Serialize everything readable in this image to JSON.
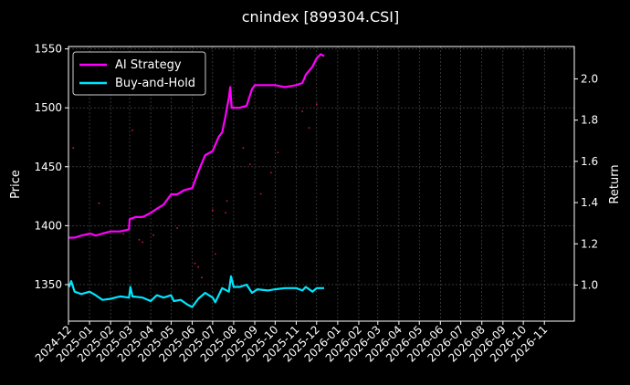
{
  "chart_data": {
    "type": "line",
    "title": "cnindex [899304.CSI]",
    "ylabel_left": "Price",
    "ylabel_right": "Return",
    "x_ticks": [
      "2024-12",
      "2025-01",
      "2025-02",
      "2025-03",
      "2025-04",
      "2025-05",
      "2025-06",
      "2025-07",
      "2025-08",
      "2025-09",
      "2025-10",
      "2025-11",
      "2025-12",
      "2026-01",
      "2026-02",
      "2026-03",
      "2026-04",
      "2026-05",
      "2026-06",
      "2026-07",
      "2026-08",
      "2026-09",
      "2026-10",
      "2026-11"
    ],
    "x_range": [
      "2024-12-01",
      "2026-12-15"
    ],
    "left_ticks": [
      1350,
      1400,
      1450,
      1500,
      1550
    ],
    "left_range": [
      1319,
      1552
    ],
    "right_ticks": [
      "1.0",
      "1.2",
      "1.4",
      "1.6",
      "1.8",
      "2.0"
    ],
    "right_range": [
      0.825,
      2.157
    ],
    "grid": true,
    "legend_position": "top-left",
    "colors": {
      "ai": "#ff00ff",
      "bh": "#00e5ff",
      "bg": "#000000",
      "grid": "#555555"
    },
    "series": [
      {
        "name": "AI Strategy",
        "axis": "right",
        "color": "#ff00ff",
        "points": [
          [
            "2024-12-02",
            1.23
          ],
          [
            "2024-12-10",
            1.23
          ],
          [
            "2024-12-20",
            1.24
          ],
          [
            "2025-01-02",
            1.25
          ],
          [
            "2025-01-10",
            1.24
          ],
          [
            "2025-01-20",
            1.25
          ],
          [
            "2025-02-01",
            1.26
          ],
          [
            "2025-02-15",
            1.26
          ],
          [
            "2025-02-28",
            1.27
          ],
          [
            "2025-03-01",
            1.32
          ],
          [
            "2025-03-10",
            1.33
          ],
          [
            "2025-03-20",
            1.33
          ],
          [
            "2025-04-01",
            1.35
          ],
          [
            "2025-04-10",
            1.37
          ],
          [
            "2025-04-20",
            1.39
          ],
          [
            "2025-05-01",
            1.44
          ],
          [
            "2025-05-10",
            1.44
          ],
          [
            "2025-05-20",
            1.46
          ],
          [
            "2025-06-01",
            1.47
          ],
          [
            "2025-06-10",
            1.55
          ],
          [
            "2025-06-20",
            1.63
          ],
          [
            "2025-07-01",
            1.65
          ],
          [
            "2025-07-10",
            1.72
          ],
          [
            "2025-07-15",
            1.74
          ],
          [
            "2025-07-20",
            1.82
          ],
          [
            "2025-07-25",
            1.91
          ],
          [
            "2025-07-27",
            1.96
          ],
          [
            "2025-07-29",
            1.86
          ],
          [
            "2025-08-10",
            1.86
          ],
          [
            "2025-08-20",
            1.87
          ],
          [
            "2025-08-28",
            1.95
          ],
          [
            "2025-09-01",
            1.97
          ],
          [
            "2025-09-15",
            1.97
          ],
          [
            "2025-10-01",
            1.97
          ],
          [
            "2025-10-15",
            1.96
          ],
          [
            "2025-11-01",
            1.97
          ],
          [
            "2025-11-10",
            1.98
          ],
          [
            "2025-11-15",
            2.02
          ],
          [
            "2025-11-25",
            2.06
          ],
          [
            "2025-12-01",
            2.1
          ],
          [
            "2025-12-07",
            2.12
          ],
          [
            "2025-12-12",
            2.11
          ]
        ]
      },
      {
        "name": "Buy-and-Hold",
        "axis": "left",
        "color": "#00e5ff",
        "points": [
          [
            "2024-12-02",
            1348
          ],
          [
            "2024-12-05",
            1353
          ],
          [
            "2024-12-10",
            1344
          ],
          [
            "2024-12-20",
            1342
          ],
          [
            "2025-01-01",
            1344
          ],
          [
            "2025-01-10",
            1341
          ],
          [
            "2025-01-20",
            1337
          ],
          [
            "2025-02-01",
            1338
          ],
          [
            "2025-02-15",
            1340
          ],
          [
            "2025-02-28",
            1339
          ],
          [
            "2025-03-02",
            1348
          ],
          [
            "2025-03-05",
            1340
          ],
          [
            "2025-03-20",
            1339
          ],
          [
            "2025-04-01",
            1336
          ],
          [
            "2025-04-10",
            1341
          ],
          [
            "2025-04-20",
            1339
          ],
          [
            "2025-05-01",
            1341
          ],
          [
            "2025-05-05",
            1336
          ],
          [
            "2025-05-15",
            1337
          ],
          [
            "2025-05-25",
            1333
          ],
          [
            "2025-06-01",
            1331
          ],
          [
            "2025-06-10",
            1338
          ],
          [
            "2025-06-20",
            1343
          ],
          [
            "2025-07-01",
            1339
          ],
          [
            "2025-07-05",
            1335
          ],
          [
            "2025-07-15",
            1347
          ],
          [
            "2025-07-25",
            1344
          ],
          [
            "2025-07-28",
            1357
          ],
          [
            "2025-08-01",
            1348
          ],
          [
            "2025-08-10",
            1348
          ],
          [
            "2025-08-20",
            1350
          ],
          [
            "2025-08-28",
            1343
          ],
          [
            "2025-09-05",
            1346
          ],
          [
            "2025-09-20",
            1345
          ],
          [
            "2025-10-01",
            1346
          ],
          [
            "2025-10-15",
            1347
          ],
          [
            "2025-11-01",
            1347
          ],
          [
            "2025-11-10",
            1345
          ],
          [
            "2025-11-15",
            1348
          ],
          [
            "2025-11-25",
            1344
          ],
          [
            "2025-12-01",
            1347
          ],
          [
            "2025-12-12",
            1347
          ]
        ]
      }
    ],
    "scatter_dots": [
      [
        "2024-12-08",
        1466
      ],
      [
        "2025-01-15",
        1419
      ],
      [
        "2025-02-20",
        1393
      ],
      [
        "2025-03-05",
        1481
      ],
      [
        "2025-03-15",
        1388
      ],
      [
        "2025-03-20",
        1386
      ],
      [
        "2025-04-05",
        1392
      ],
      [
        "2025-05-10",
        1398
      ],
      [
        "2025-06-05",
        1368
      ],
      [
        "2025-06-10",
        1365
      ],
      [
        "2025-06-15",
        1356
      ],
      [
        "2025-07-01",
        1413
      ],
      [
        "2025-07-05",
        1376
      ],
      [
        "2025-07-20",
        1411
      ],
      [
        "2025-07-22",
        1421
      ],
      [
        "2025-08-15",
        1466
      ],
      [
        "2025-08-25",
        1452
      ],
      [
        "2025-09-10",
        1427
      ],
      [
        "2025-09-25",
        1445
      ],
      [
        "2025-10-05",
        1462
      ],
      [
        "2025-11-10",
        1497
      ],
      [
        "2025-11-20",
        1483
      ],
      [
        "2025-12-01",
        1503
      ]
    ]
  }
}
